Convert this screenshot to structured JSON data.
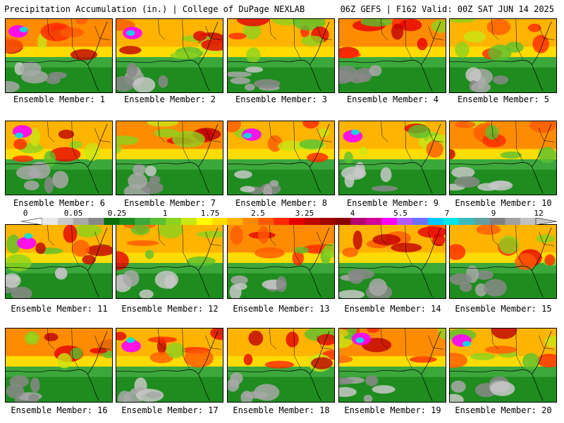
{
  "header": {
    "left": "Precipitation Accumulation (in.) | College of DuPage NEXLAB",
    "right": "06Z GEFS | F162 Valid: 00Z SAT JUN 14 2025"
  },
  "colorbar": {
    "labels": [
      "0",
      "0.05",
      "0.25",
      "1",
      "1.75",
      "2.5",
      "3.25",
      "4",
      "5.5",
      "7",
      "9",
      "12"
    ],
    "colors": [
      "#e8e8e8",
      "#c8c8c8",
      "#a8a8a8",
      "#888888",
      "#0a6e0a",
      "#1e8c1e",
      "#3ca83c",
      "#5ac030",
      "#8cd21e",
      "#c8e614",
      "#ffff00",
      "#ffdc00",
      "#ffb400",
      "#ff8c00",
      "#ff5a00",
      "#ff2800",
      "#e60000",
      "#c00000",
      "#a00000",
      "#880000",
      "#b4006e",
      "#d2009a",
      "#ff00ff",
      "#b45aff",
      "#6e6eff",
      "#00c8ff",
      "#00e6e6",
      "#3cbcbc",
      "#64a0a0",
      "#808080",
      "#a0a0a0",
      "#c0c0c0"
    ]
  },
  "panels": [
    {
      "caption": "Ensemble Member: 1"
    },
    {
      "caption": "Ensemble Member: 2"
    },
    {
      "caption": "Ensemble Member: 3"
    },
    {
      "caption": "Ensemble Member: 4"
    },
    {
      "caption": "Ensemble Member: 5"
    },
    {
      "caption": "Ensemble Member: 6"
    },
    {
      "caption": "Ensemble Member: 7"
    },
    {
      "caption": "Ensemble Member: 8"
    },
    {
      "caption": "Ensemble Member: 9"
    },
    {
      "caption": "Ensemble Member: 10"
    },
    {
      "caption": "Ensemble Member: 11"
    },
    {
      "caption": "Ensemble Member: 12"
    },
    {
      "caption": "Ensemble Member: 13"
    },
    {
      "caption": "Ensemble Member: 14"
    },
    {
      "caption": "Ensemble Member: 15"
    },
    {
      "caption": "Ensemble Member: 16"
    },
    {
      "caption": "Ensemble Member: 17"
    },
    {
      "caption": "Ensemble Member: 18"
    },
    {
      "caption": "Ensemble Member: 19"
    },
    {
      "caption": "Ensemble Member: 20"
    }
  ]
}
